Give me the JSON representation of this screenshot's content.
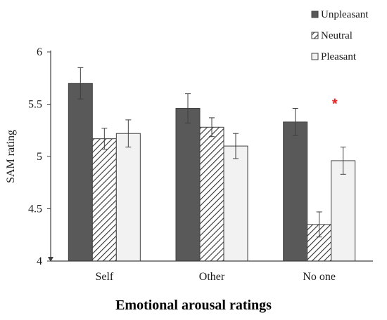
{
  "chart_data": {
    "type": "bar",
    "title": "",
    "xlabel": "Emotional arousal ratings",
    "ylabel": "SAM rating",
    "ylim": [
      4,
      6
    ],
    "yticks": [
      "4",
      "4.5",
      "5",
      "5.5",
      "6"
    ],
    "grid": false,
    "legend_position": "top-right",
    "categories": [
      "Self",
      "Other",
      "No one"
    ],
    "series": [
      {
        "name": "Unpleasant",
        "values": [
          5.7,
          5.46,
          5.33
        ],
        "errors": [
          0.15,
          0.14,
          0.13
        ],
        "fill": "#595959",
        "pattern": "solid"
      },
      {
        "name": "Neutral",
        "values": [
          5.17,
          5.28,
          4.35
        ],
        "errors": [
          0.1,
          0.09,
          0.12
        ],
        "fill": "#ffffff",
        "pattern": "hatch"
      },
      {
        "name": "Pleasant",
        "values": [
          5.22,
          5.1,
          4.96
        ],
        "errors": [
          0.13,
          0.12,
          0.13
        ],
        "fill": "#f2f2f2",
        "pattern": "solid"
      }
    ],
    "annotations": [
      {
        "text": "*",
        "category": "No one",
        "y": 5.52,
        "color": "#e02020"
      }
    ]
  }
}
